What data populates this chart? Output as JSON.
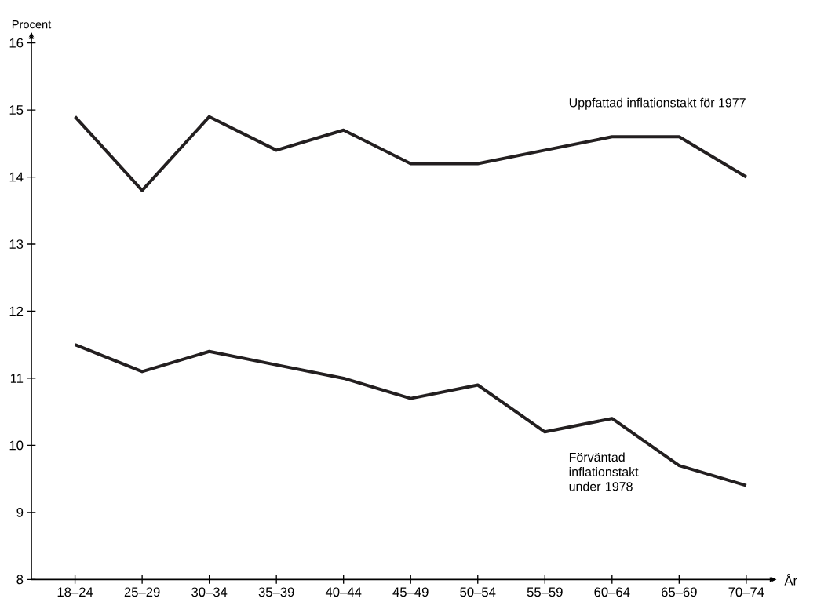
{
  "chart_data": {
    "type": "line",
    "xlabel": "År",
    "ylabel": "Procent",
    "categories": [
      "18–24",
      "25–29",
      "30–34",
      "35–39",
      "40–44",
      "45–49",
      "50–54",
      "55–59",
      "60–64",
      "65–69",
      "70–74"
    ],
    "series": [
      {
        "name": "Uppfattad inflationstakt för 1977",
        "color": "#231f20",
        "values": [
          14.9,
          13.8,
          14.9,
          14.4,
          14.7,
          14.2,
          14.2,
          14.4,
          14.6,
          14.6,
          14.0
        ]
      },
      {
        "name": "Förväntad inflationstakt under 1978",
        "color": "#231f20",
        "values": [
          11.5,
          11.1,
          11.4,
          11.2,
          11.0,
          10.7,
          10.9,
          10.2,
          10.4,
          9.7,
          9.4
        ]
      }
    ],
    "ylim": [
      8,
      16.16
    ],
    "yticks": [
      8,
      9,
      10,
      11,
      12,
      13,
      14,
      15,
      16
    ],
    "grid": false,
    "legend": false,
    "marker": "none",
    "line_style": "solid"
  }
}
